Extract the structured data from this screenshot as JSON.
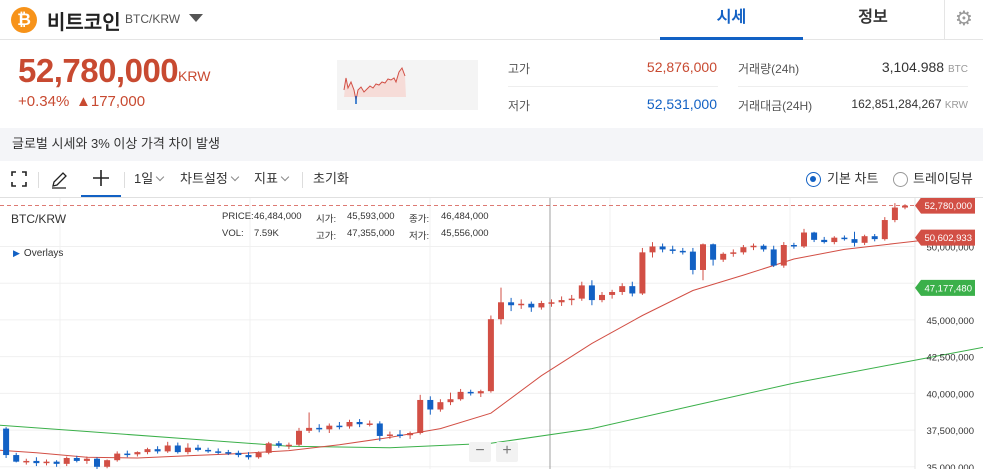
{
  "header": {
    "coin_icon_glyph": "₿",
    "coin_name": "비트코인",
    "pair": "BTC/KRW",
    "tabs": [
      {
        "label": "시세"
      },
      {
        "label": "정보"
      }
    ],
    "settings_icon": "gear-icon"
  },
  "summary": {
    "price": "52,780,000",
    "unit": "KRW",
    "change_rate": "+0.34%",
    "change_amount": "▲177,000",
    "high_label": "고가",
    "high_value": "52,876,000",
    "low_label": "저가",
    "low_value": "52,531,000",
    "volume_label": "거래량(24h)",
    "volume_value": "3,104.988",
    "volume_unit": "BTC",
    "trade_value_label": "거래대금(24H)",
    "trade_value_value": "162,851,284,267",
    "trade_value_unit": "KRW"
  },
  "notice": "글로벌 시세와 3% 이상 가격 차이 발생",
  "toolbar": {
    "fullscreen_icon": "fullscreen-icon",
    "draw_icon": "pencil-icon",
    "crosshair_icon": "crosshair-icon",
    "interval": "1일",
    "chart_settings": "차트설정",
    "indicators": "지표",
    "reset": "초기화",
    "basic_chart": "기본 차트",
    "tradingview": "트레이딩뷰"
  },
  "chart_panel": {
    "symbol": "BTC/KRW",
    "price_label": "PRICE:",
    "price_value": "46,484,000",
    "vol_label": "VOL:",
    "vol_value": "7.59K",
    "open_label": "시가:",
    "open_value": "45,593,000",
    "close_label": "종가:",
    "close_value": "46,484,000",
    "high_label": "고가:",
    "high_value": "47,355,000",
    "low_label": "저가:",
    "low_value": "45,556,000",
    "overlays": "Overlays",
    "zoom_out": "−",
    "zoom_in": "+"
  },
  "chart_data": {
    "type": "candlestick",
    "y_axis": {
      "min": 34850000,
      "max": 53300000,
      "ticks": [
        35000000,
        37500000,
        40000000,
        42500000,
        45000000,
        47500000,
        50000000
      ]
    },
    "tick_labels": [
      "35,000,000",
      "37,500,000",
      "40,000,000",
      "42,500,000",
      "45,000,000",
      "47,500,000",
      "50,000,000"
    ],
    "markers": [
      {
        "value": 52780000,
        "label": "52,780,000",
        "color": "#d24f45"
      },
      {
        "value": 50602933,
        "label": "50,602,933",
        "color": "#d24f45"
      },
      {
        "value": 47177480,
        "label": "47,177,480",
        "color": "#3bb04a"
      }
    ],
    "candles": [
      [
        35050000,
        35700000,
        34900000,
        35500000
      ],
      [
        35500000,
        38000000,
        35300000,
        37600000
      ],
      [
        37600000,
        37700000,
        35600000,
        35800000
      ],
      [
        35800000,
        35950000,
        35300000,
        35350000
      ],
      [
        35350000,
        35550000,
        35150000,
        35400000
      ],
      [
        35400000,
        35650000,
        35050000,
        35250000
      ],
      [
        35250000,
        35500000,
        35100000,
        35350000
      ],
      [
        35350000,
        35450000,
        35000000,
        35200000
      ],
      [
        35200000,
        35700000,
        35050000,
        35600000
      ],
      [
        35600000,
        35750000,
        35300000,
        35400000
      ],
      [
        35400000,
        35700000,
        35200000,
        35550000
      ],
      [
        35550000,
        35650000,
        34850000,
        35000000
      ],
      [
        35000000,
        35500000,
        34900000,
        35450000
      ],
      [
        35450000,
        36050000,
        35350000,
        35900000
      ],
      [
        35900000,
        36100000,
        35650000,
        35850000
      ],
      [
        35850000,
        36050000,
        35700000,
        36000000
      ],
      [
        36000000,
        36300000,
        35850000,
        36200000
      ],
      [
        36200000,
        36400000,
        35900000,
        36050000
      ],
      [
        36050000,
        36700000,
        35950000,
        36450000
      ],
      [
        36450000,
        36650000,
        35900000,
        36000000
      ],
      [
        36000000,
        36600000,
        35850000,
        36300000
      ],
      [
        36300000,
        36500000,
        36050000,
        36150000
      ],
      [
        36150000,
        36300000,
        35950000,
        36050000
      ],
      [
        36050000,
        36250000,
        35850000,
        36000000
      ],
      [
        36000000,
        36150000,
        35800000,
        35950000
      ],
      [
        35950000,
        36100000,
        35650000,
        35800000
      ],
      [
        35800000,
        36000000,
        35500000,
        35650000
      ],
      [
        35650000,
        36050000,
        35550000,
        35950000
      ],
      [
        35950000,
        36700000,
        35850000,
        36600000
      ],
      [
        36600000,
        36750000,
        36300000,
        36450000
      ],
      [
        36450000,
        36650000,
        36200000,
        36500000
      ],
      [
        36500000,
        37650000,
        36400000,
        37450000
      ],
      [
        37450000,
        38700000,
        37300000,
        37650000
      ],
      [
        37650000,
        37900000,
        37350000,
        37550000
      ],
      [
        37550000,
        37950000,
        37300000,
        37800000
      ],
      [
        37800000,
        38050000,
        37550000,
        37750000
      ],
      [
        37750000,
        38200000,
        37600000,
        38050000
      ],
      [
        38050000,
        38250000,
        37700000,
        37900000
      ],
      [
        37900000,
        38150000,
        37750000,
        37950000
      ],
      [
        37950000,
        38100000,
        36750000,
        37100000
      ],
      [
        37100000,
        37400000,
        36900000,
        37200000
      ],
      [
        37200000,
        37500000,
        36950000,
        37150000
      ],
      [
        37150000,
        37400000,
        36900000,
        37300000
      ],
      [
        37300000,
        39900000,
        37200000,
        39550000
      ],
      [
        39550000,
        39800000,
        38550000,
        38900000
      ],
      [
        38900000,
        39600000,
        38750000,
        39400000
      ],
      [
        39400000,
        40050000,
        39200000,
        39600000
      ],
      [
        39600000,
        40300000,
        39500000,
        40100000
      ],
      [
        40100000,
        40250000,
        39850000,
        40000000
      ],
      [
        40000000,
        40250000,
        39750000,
        40150000
      ],
      [
        40150000,
        45300000,
        40050000,
        45050000
      ],
      [
        45050000,
        47200000,
        44700000,
        46200000
      ],
      [
        46200000,
        46500000,
        45600000,
        46000000
      ],
      [
        46000000,
        46400000,
        45750000,
        46100000
      ],
      [
        46100000,
        46250000,
        45550000,
        45850000
      ],
      [
        45850000,
        46300000,
        45700000,
        46150000
      ],
      [
        46150000,
        46400000,
        45900000,
        46200000
      ],
      [
        46200000,
        46600000,
        45950000,
        46350000
      ],
      [
        46350000,
        46700000,
        46000000,
        46450000
      ],
      [
        46450000,
        47600000,
        46300000,
        47350000
      ],
      [
        47350000,
        47700000,
        46000000,
        46350000
      ],
      [
        46350000,
        46900000,
        46200000,
        46700000
      ],
      [
        46700000,
        47050000,
        46450000,
        46900000
      ],
      [
        46900000,
        47500000,
        46700000,
        47300000
      ],
      [
        47300000,
        47600000,
        46600000,
        46800000
      ],
      [
        46800000,
        49900000,
        46700000,
        49600000
      ],
      [
        49600000,
        50300000,
        49250000,
        50000000
      ],
      [
        50000000,
        50200000,
        49600000,
        49800000
      ],
      [
        49800000,
        50050000,
        49500000,
        49700000
      ],
      [
        49700000,
        49900000,
        49450000,
        49650000
      ],
      [
        49650000,
        49900000,
        48100000,
        48400000
      ],
      [
        48400000,
        50200000,
        47700000,
        50150000
      ],
      [
        50150000,
        50200000,
        48700000,
        49100000
      ],
      [
        49100000,
        49600000,
        48950000,
        49500000
      ],
      [
        49500000,
        49800000,
        49300000,
        49600000
      ],
      [
        49600000,
        50100000,
        49450000,
        49950000
      ],
      [
        49950000,
        50200000,
        49750000,
        50050000
      ],
      [
        50050000,
        50150000,
        49650000,
        49800000
      ],
      [
        49800000,
        50050000,
        48600000,
        48700000
      ],
      [
        48700000,
        50300000,
        48550000,
        50100000
      ],
      [
        50100000,
        50250000,
        49850000,
        50000000
      ],
      [
        50000000,
        51200000,
        49900000,
        50950000
      ],
      [
        50950000,
        51000000,
        50300000,
        50450000
      ],
      [
        50450000,
        50650000,
        50200000,
        50300000
      ],
      [
        50300000,
        50700000,
        50150000,
        50600000
      ],
      [
        50600000,
        50750000,
        50400000,
        50500000
      ],
      [
        50500000,
        51000000,
        50000000,
        50250000
      ],
      [
        50250000,
        50800000,
        50100000,
        50700000
      ],
      [
        50700000,
        50850000,
        50350000,
        50500000
      ],
      [
        50500000,
        52000000,
        50400000,
        51800000
      ],
      [
        51800000,
        52950000,
        51650000,
        52650000
      ],
      [
        52650000,
        52876000,
        52531000,
        52780000
      ]
    ],
    "ma_short": [
      [
        0,
        36200000
      ],
      [
        5,
        35950000
      ],
      [
        10,
        35650000
      ],
      [
        15,
        35600000
      ],
      [
        20,
        35750000
      ],
      [
        25,
        35900000
      ],
      [
        30,
        36100000
      ],
      [
        35,
        36500000
      ],
      [
        40,
        37000000
      ],
      [
        45,
        37600000
      ],
      [
        50,
        38650000
      ],
      [
        55,
        41200000
      ],
      [
        60,
        43400000
      ],
      [
        65,
        45300000
      ],
      [
        70,
        47000000
      ],
      [
        75,
        48050000
      ],
      [
        80,
        49150000
      ],
      [
        85,
        49800000
      ],
      [
        90,
        50200000
      ],
      [
        95,
        50600000
      ]
    ],
    "ma_long": [
      [
        0,
        37900000
      ],
      [
        10,
        37400000
      ],
      [
        20,
        36900000
      ],
      [
        30,
        36400000
      ],
      [
        40,
        36300000
      ],
      [
        50,
        36600000
      ],
      [
        60,
        37600000
      ],
      [
        70,
        39150000
      ],
      [
        80,
        40700000
      ],
      [
        90,
        42000000
      ],
      [
        100,
        43300000
      ],
      [
        110,
        44600000
      ],
      [
        120,
        45900000
      ],
      [
        127,
        47177480
      ]
    ]
  }
}
